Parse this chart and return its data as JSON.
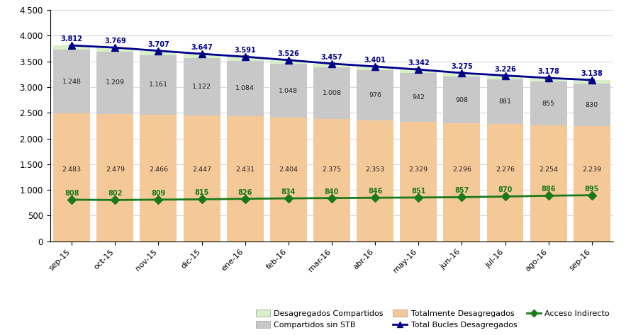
{
  "categories": [
    "sep-15",
    "oct-15",
    "nov-15",
    "dic-15",
    "ene-16",
    "feb-16",
    "mar-16",
    "abr-16",
    "may-16",
    "jun-16",
    "jul-16",
    "ago-16",
    "sep-16"
  ],
  "desagregados_compartidos": [
    81,
    81,
    79,
    78,
    76,
    74,
    74,
    72,
    71,
    70,
    69,
    68,
    69
  ],
  "compartidos_sin_stb": [
    1248,
    1209,
    1161,
    1122,
    1084,
    1048,
    1008,
    976,
    942,
    908,
    881,
    855,
    830
  ],
  "totalmente_desagregados": [
    2483,
    2479,
    2466,
    2447,
    2431,
    2404,
    2375,
    2353,
    2329,
    2296,
    2276,
    2254,
    2239
  ],
  "total_bucles": [
    3812,
    3769,
    3707,
    3647,
    3591,
    3526,
    3457,
    3401,
    3342,
    3275,
    3226,
    3178,
    3138
  ],
  "acceso_indirecto": [
    808,
    802,
    809,
    815,
    826,
    834,
    840,
    846,
    851,
    857,
    870,
    886,
    895
  ],
  "color_desagregados_compartidos": "#d8f0c8",
  "color_compartidos_sin_stb": "#c8c8c8",
  "color_totalmente_desagregados": "#f5c898",
  "color_total_bucles": "#00008B",
  "color_acceso_indirecto": "#1a7a1a",
  "color_text_dark": "#222222",
  "color_text_green": "#1a7a1a",
  "color_text_blue": "#00008B",
  "ylim": [
    0,
    4500
  ],
  "yticks": [
    0,
    500,
    1000,
    1500,
    2000,
    2500,
    3000,
    3500,
    4000,
    4500
  ],
  "ytick_labels": [
    "0",
    "500",
    "1.000",
    "1.500",
    "2.000",
    "2.500",
    "3.000",
    "3.500",
    "4.000",
    "4.500"
  ],
  "legend_labels": [
    "Desagregados Compartidos",
    "Compartidos sin STB",
    "Totalmente Desagregados",
    "Total Bucles Desagregados",
    "Acceso Indirecto"
  ]
}
